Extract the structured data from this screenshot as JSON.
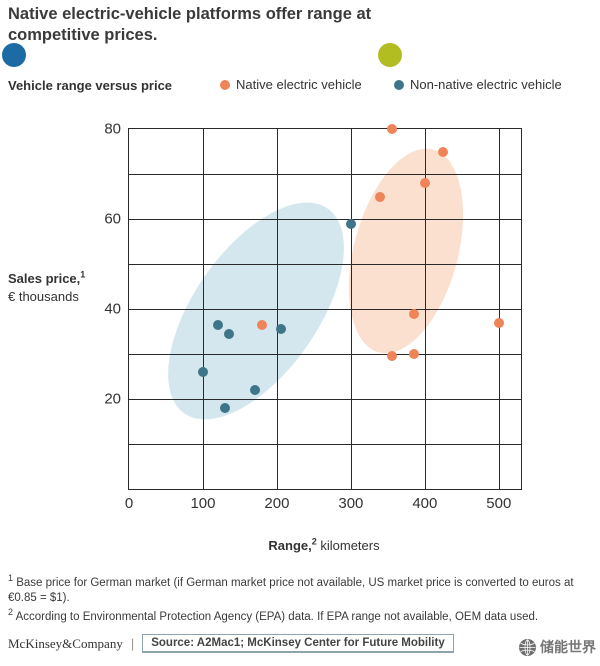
{
  "header": {
    "title_line1": "Native electric-vehicle platforms offer range at",
    "title_line2": "competitive prices.",
    "subtitle": "Vehicle range versus price"
  },
  "decor": {
    "left_dot_color": "#1c6ba5",
    "right_dot_color": "#b2bd22"
  },
  "legend": [
    {
      "label": "Native electric vehicle",
      "color": "#ee8458"
    },
    {
      "label": "Non-native electric vehicle",
      "color": "#3e7589"
    }
  ],
  "axis": {
    "y_title_bold": "Sales price,",
    "y_title_sup": "1",
    "y_title_rest": "€ thousands",
    "x_title_bold": "Range,",
    "x_title_sup": "2",
    "x_title_rest": " kilometers"
  },
  "chart_data": {
    "type": "scatter",
    "title": "Vehicle range versus price",
    "xlabel": "Range, kilometers",
    "ylabel": "Sales price, € thousands",
    "xlim": [
      0,
      530
    ],
    "ylim": [
      0,
      80
    ],
    "x_ticks": [
      0,
      100,
      200,
      300,
      400,
      500
    ],
    "y_ticks": [
      20,
      40,
      60,
      80
    ],
    "x_gridlines": [
      100,
      200,
      300,
      400,
      500
    ],
    "y_gridlines": [
      10,
      20,
      30,
      40,
      50,
      60,
      70
    ],
    "grid": true,
    "legend_position": "top",
    "series": [
      {
        "name": "Native electric vehicle",
        "color": "#ee8458",
        "points": [
          [
            180,
            36.5
          ],
          [
            340,
            65
          ],
          [
            355,
            80
          ],
          [
            355,
            29.5
          ],
          [
            385,
            39
          ],
          [
            385,
            30
          ],
          [
            400,
            68
          ],
          [
            425,
            75
          ],
          [
            500,
            37
          ]
        ]
      },
      {
        "name": "Non-native electric vehicle",
        "color": "#3e7589",
        "points": [
          [
            100,
            26
          ],
          [
            120,
            36.5
          ],
          [
            135,
            34.5
          ],
          [
            130,
            18
          ],
          [
            170,
            22
          ],
          [
            205,
            35.5
          ],
          [
            300,
            59
          ]
        ]
      }
    ],
    "clusters": [
      {
        "name": "non-native cluster",
        "color": "#a9cfdd"
      },
      {
        "name": "native cluster",
        "color": "#f8c2a0"
      }
    ]
  },
  "footnotes": [
    {
      "marker": "1",
      "text": "Base price for German market (if German market price not available, US market price is converted to euros at €0.85 = $1)."
    },
    {
      "marker": "2",
      "text": "According to Environmental Protection Agency (EPA) data. If EPA range not available, OEM data used."
    }
  ],
  "footer": {
    "brand": "McKinsey&Company",
    "separator": "|",
    "source": "Source: A2Mac1; McKinsey Center for Future Mobility",
    "watermark": "储能世界"
  }
}
